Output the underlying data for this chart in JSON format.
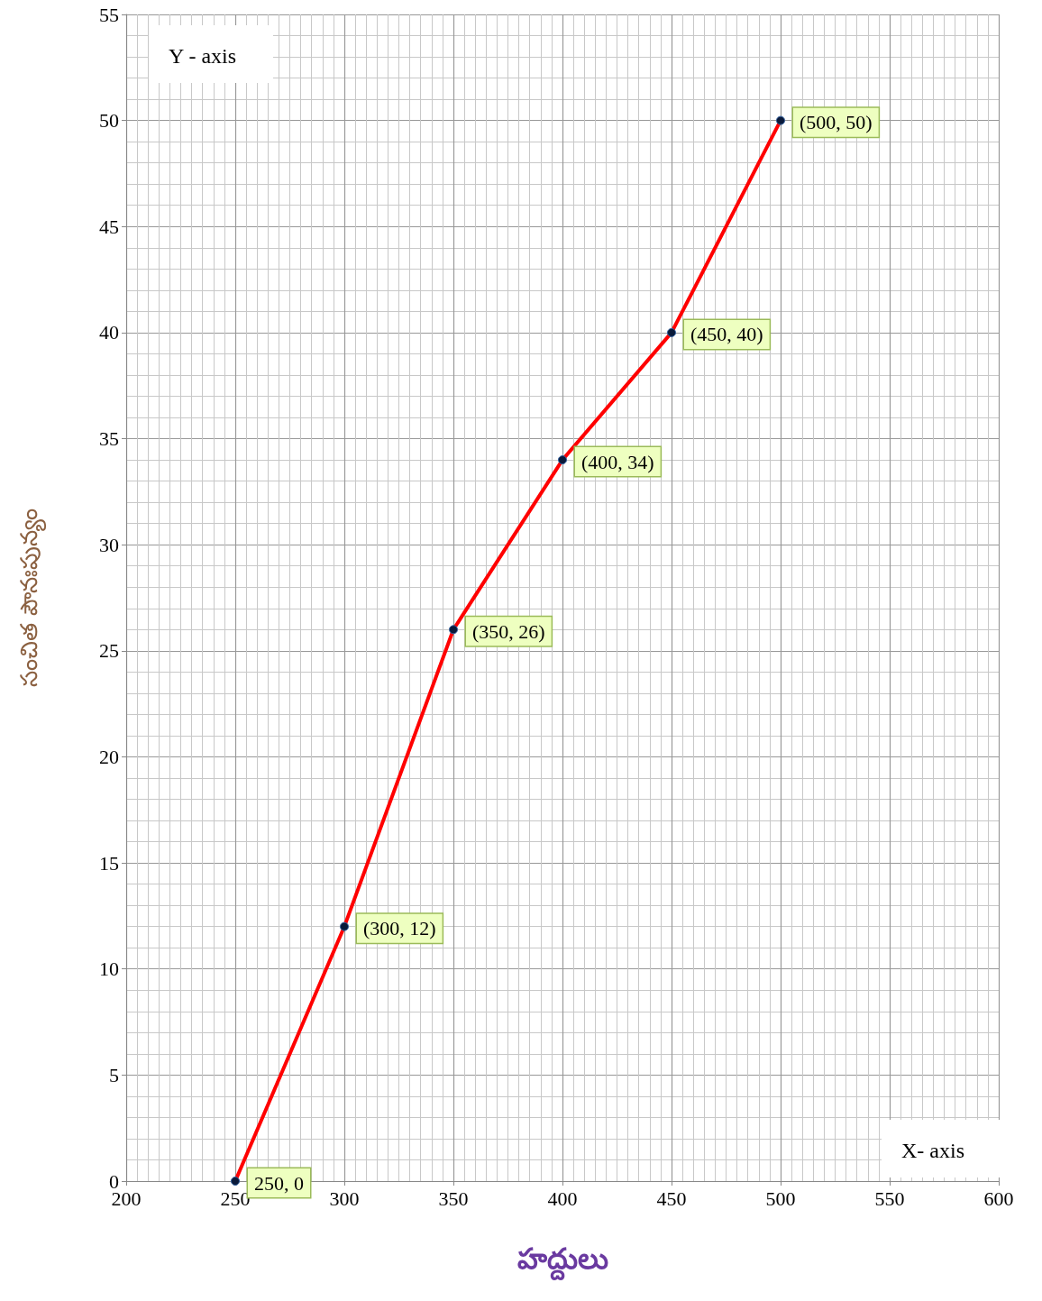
{
  "chart_data": {
    "type": "line",
    "xlabel": "హద్దులు",
    "ylabel": "సంచిత పౌనఃపున్యం",
    "x": [
      250,
      300,
      350,
      400,
      450,
      500
    ],
    "series": [
      {
        "color": "#ff0000",
        "values": [
          0,
          12,
          26,
          34,
          40,
          50
        ],
        "value_labels": [
          "250, 0",
          "(300, 12)",
          "(350, 26)",
          "(400, 34)",
          "(450, 40)",
          "(500, 50)"
        ]
      }
    ],
    "xlim": [
      200,
      600
    ],
    "xticks": [
      200,
      250,
      300,
      350,
      400,
      450,
      500,
      550,
      600
    ],
    "ylim": [
      0,
      55
    ],
    "yticks": [
      0,
      5,
      10,
      15,
      20,
      25,
      30,
      35,
      40,
      45,
      50,
      55
    ],
    "grid": true,
    "marker": "circle",
    "line_style": "solid",
    "annotations": [
      "Y - axis",
      "X- axis"
    ]
  }
}
